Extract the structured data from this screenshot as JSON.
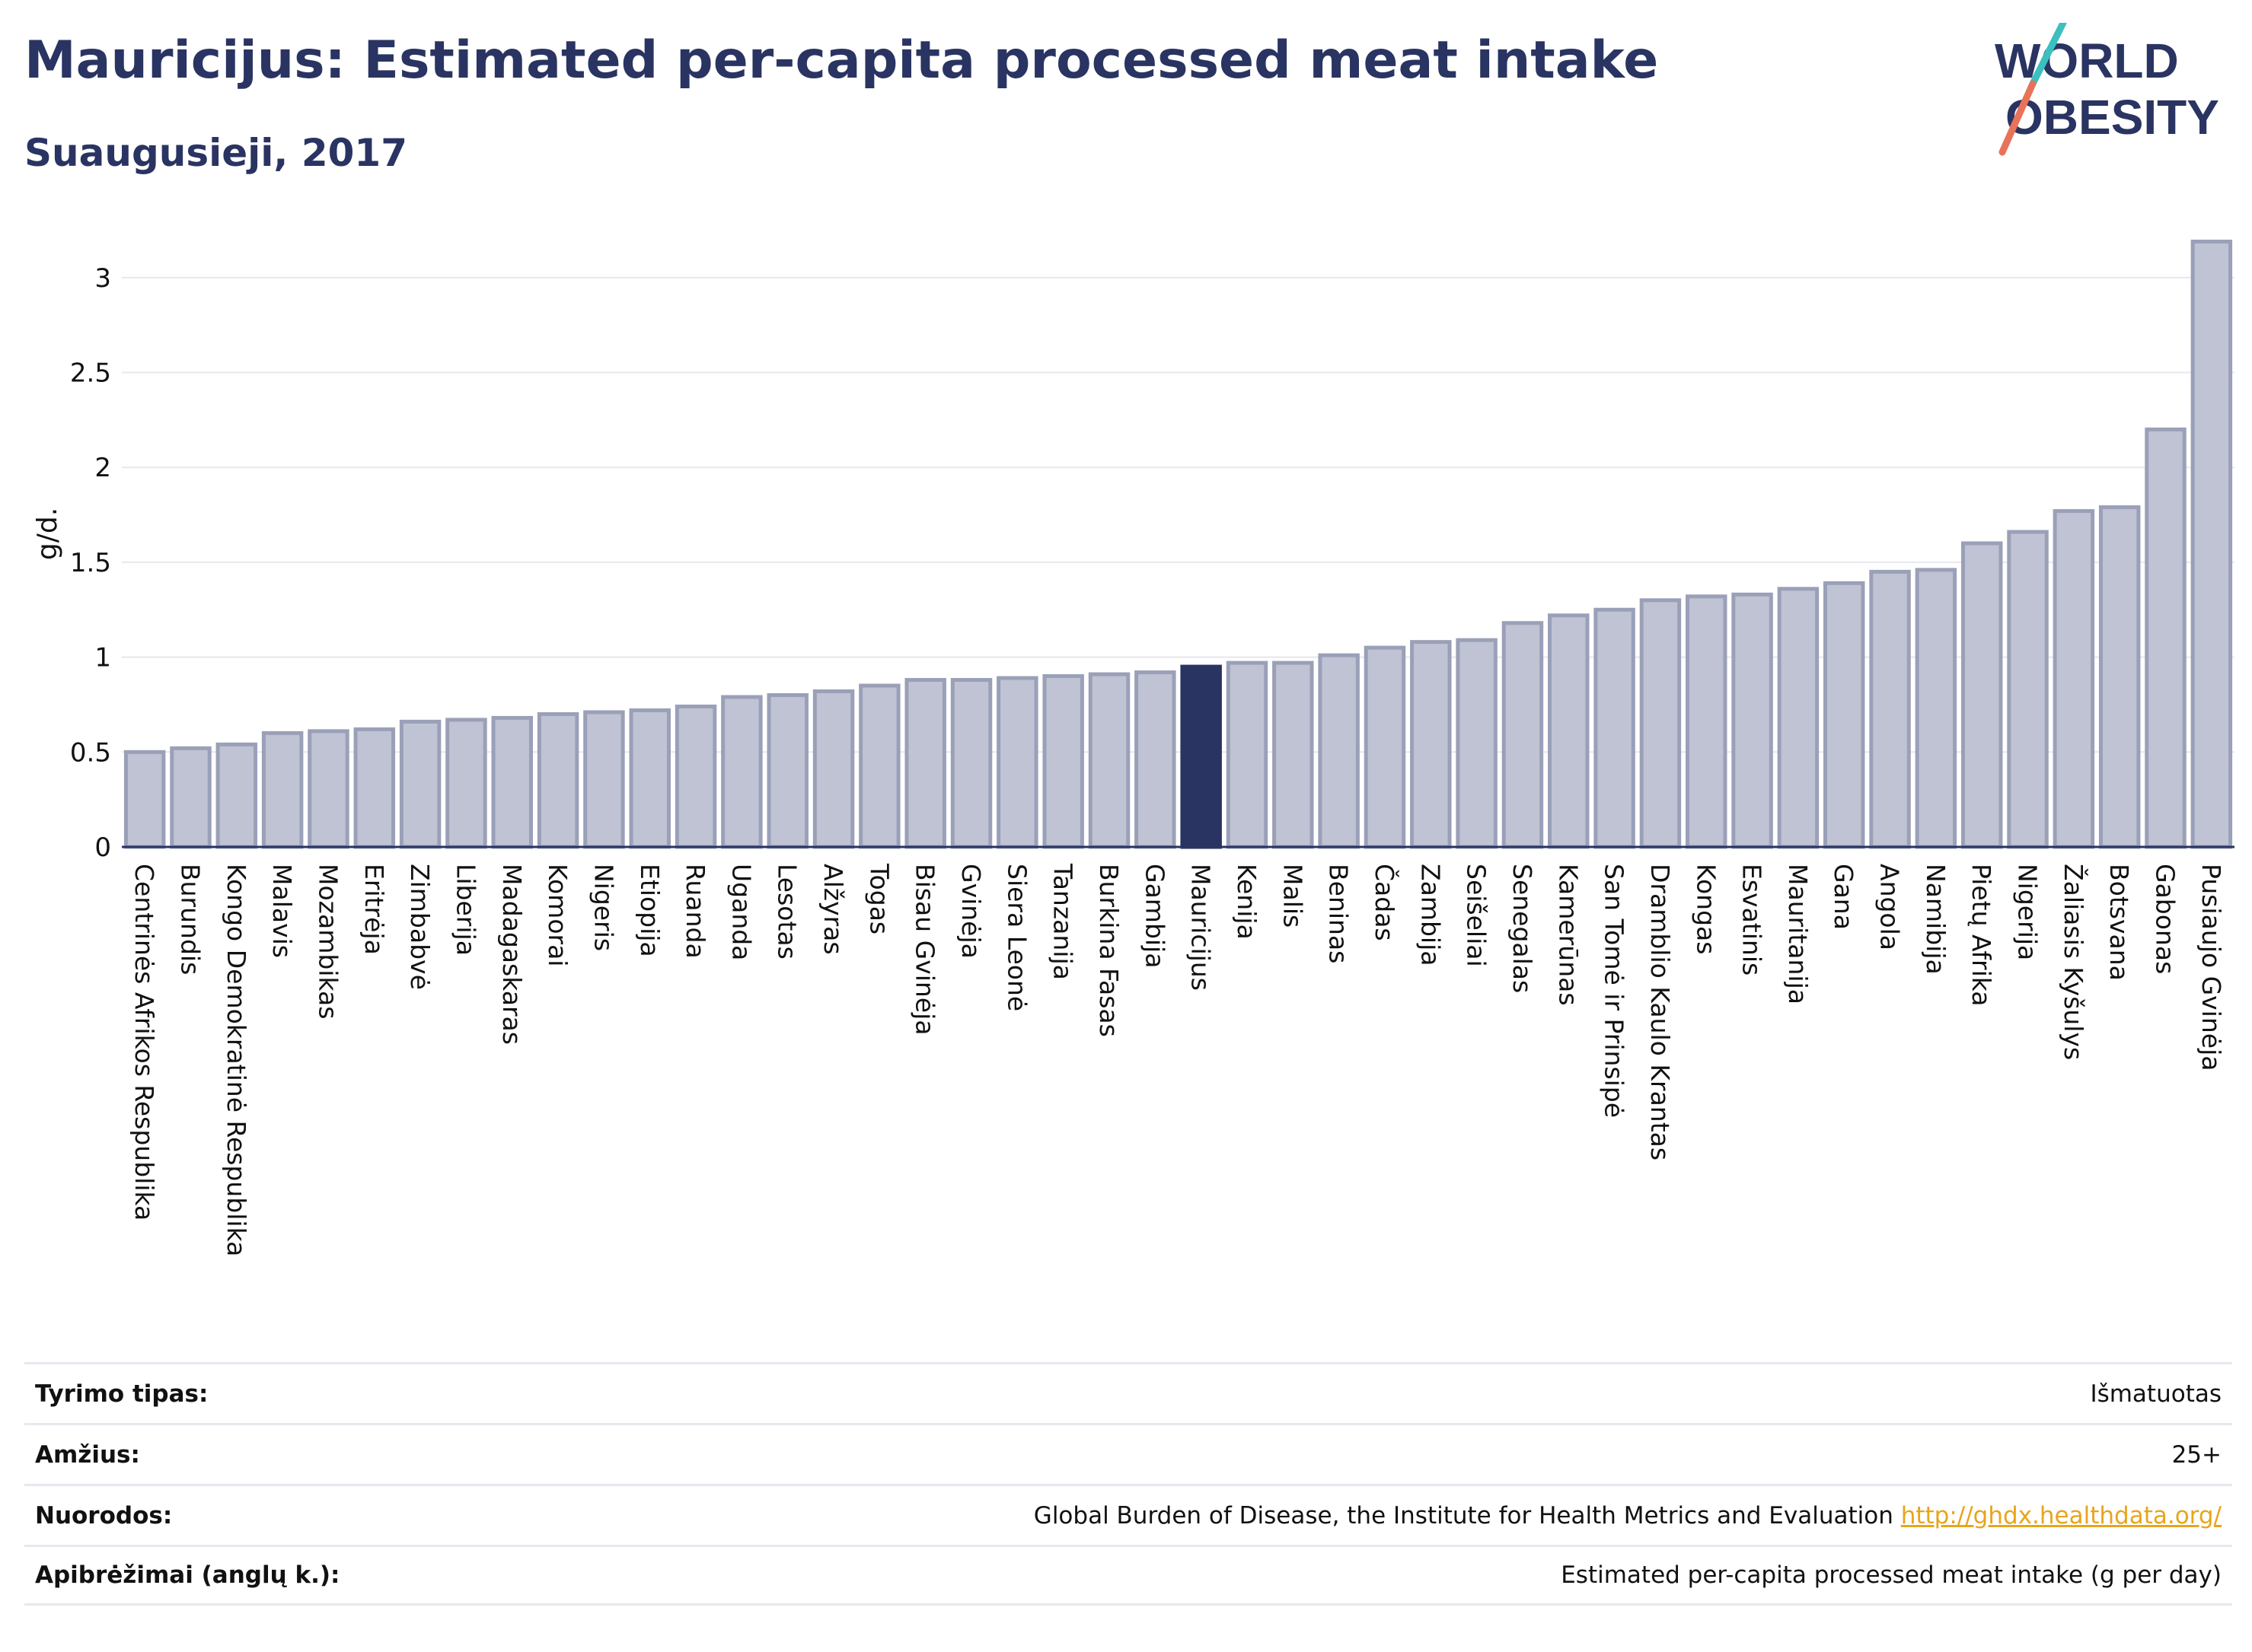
{
  "header": {
    "title": "Mauricijus: Estimated per-capita processed meat intake",
    "subtitle": "Suaugusieji, 2017"
  },
  "logo": {
    "line1": "WORLD",
    "line2": "OBESITY"
  },
  "colors": {
    "bar": "#bfc3d3",
    "bar_stroke": "#9aa0b8",
    "highlight": "#2a3462",
    "grid": "#e6e8ee",
    "accent_teal": "#3bbfbf",
    "accent_coral": "#e8735a"
  },
  "chart_data": {
    "type": "bar",
    "ylabel": "g/d.",
    "ylim": [
      0,
      3.3
    ],
    "yticks": [
      0,
      0.5,
      1,
      1.5,
      2,
      2.5,
      3
    ],
    "ytick_labels": [
      "0",
      "0.5",
      "1",
      "1.5",
      "2",
      "2.5",
      "3"
    ],
    "grid": true,
    "highlight": "Mauricijus",
    "categories": [
      "Centrinės Afrikos Respublika",
      "Burundis",
      "Kongo Demokratinė Respublika",
      "Malavis",
      "Mozambikas",
      "Eritrėja",
      "Zimbabvė",
      "Liberija",
      "Madagaskaras",
      "Komorai",
      "Nigeris",
      "Etiopija",
      "Ruanda",
      "Uganda",
      "Lesotas",
      "Alžyras",
      "Togas",
      "Bisau Gvinėja",
      "Gvinėja",
      "Siera Leonė",
      "Tanzanija",
      "Burkina Fasas",
      "Gambija",
      "Mauricijus",
      "Kenija",
      "Malis",
      "Beninas",
      "Čadas",
      "Zambija",
      "Seišeliai",
      "Senegalas",
      "Kamerūnas",
      "San Tomė ir Prinsipė",
      "Dramblio Kaulo Krantas",
      "Kongas",
      "Esvatinis",
      "Mauritanija",
      "Gana",
      "Angola",
      "Namibija",
      "Pietų Afrika",
      "Nigerija",
      "Žaliasis Kyšulys",
      "Botsvana",
      "Gabonas",
      "Pusiaujo Gvinėja"
    ],
    "values": [
      0.5,
      0.52,
      0.54,
      0.6,
      0.61,
      0.62,
      0.66,
      0.67,
      0.68,
      0.7,
      0.71,
      0.72,
      0.74,
      0.79,
      0.8,
      0.82,
      0.85,
      0.88,
      0.88,
      0.89,
      0.9,
      0.91,
      0.92,
      0.95,
      0.97,
      0.97,
      1.01,
      1.05,
      1.08,
      1.09,
      1.18,
      1.22,
      1.25,
      1.3,
      1.32,
      1.33,
      1.36,
      1.39,
      1.45,
      1.46,
      1.6,
      1.66,
      1.77,
      1.79,
      2.2,
      3.19
    ]
  },
  "footer": [
    {
      "label": "Tyrimo tipas:",
      "value": "Išmatuotas",
      "link": ""
    },
    {
      "label": "Amžius:",
      "value": "25+",
      "link": ""
    },
    {
      "label": "Nuorodos:",
      "value": "Global Burden of Disease, the Institute for Health Metrics and Evaluation",
      "link": "http://ghdx.healthdata.org/"
    },
    {
      "label": "Apibrėžimai (anglų k.):",
      "value": "Estimated per-capita processed meat intake (g per day)",
      "link": ""
    }
  ]
}
